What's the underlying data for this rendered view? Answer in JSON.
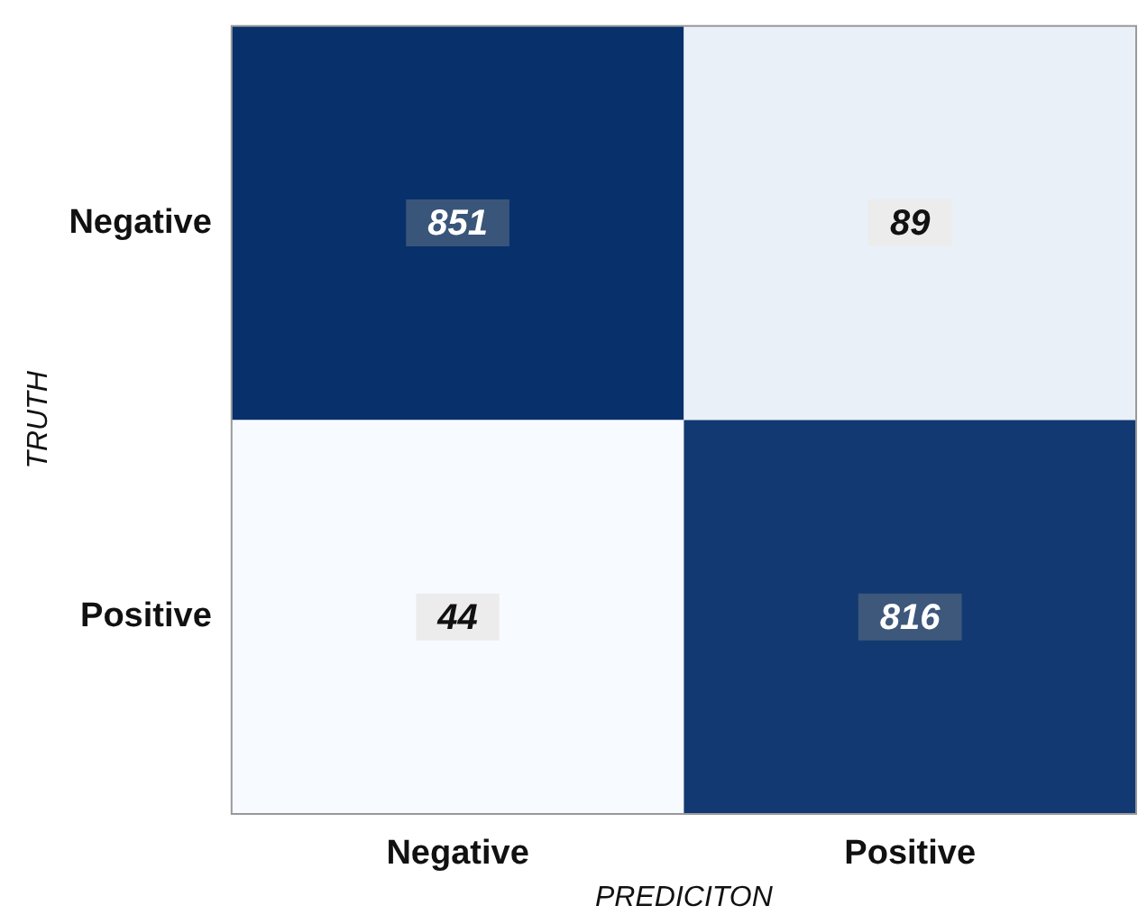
{
  "chart_data": {
    "type": "heatmap",
    "xlabel": "PREDICITON",
    "ylabel": "TRUTH",
    "categories": [
      "Negative",
      "Positive"
    ],
    "y_categories": [
      "Negative",
      "Positive"
    ],
    "cells": [
      [
        851,
        89
      ],
      [
        44,
        816
      ]
    ],
    "data_labels": true
  }
}
